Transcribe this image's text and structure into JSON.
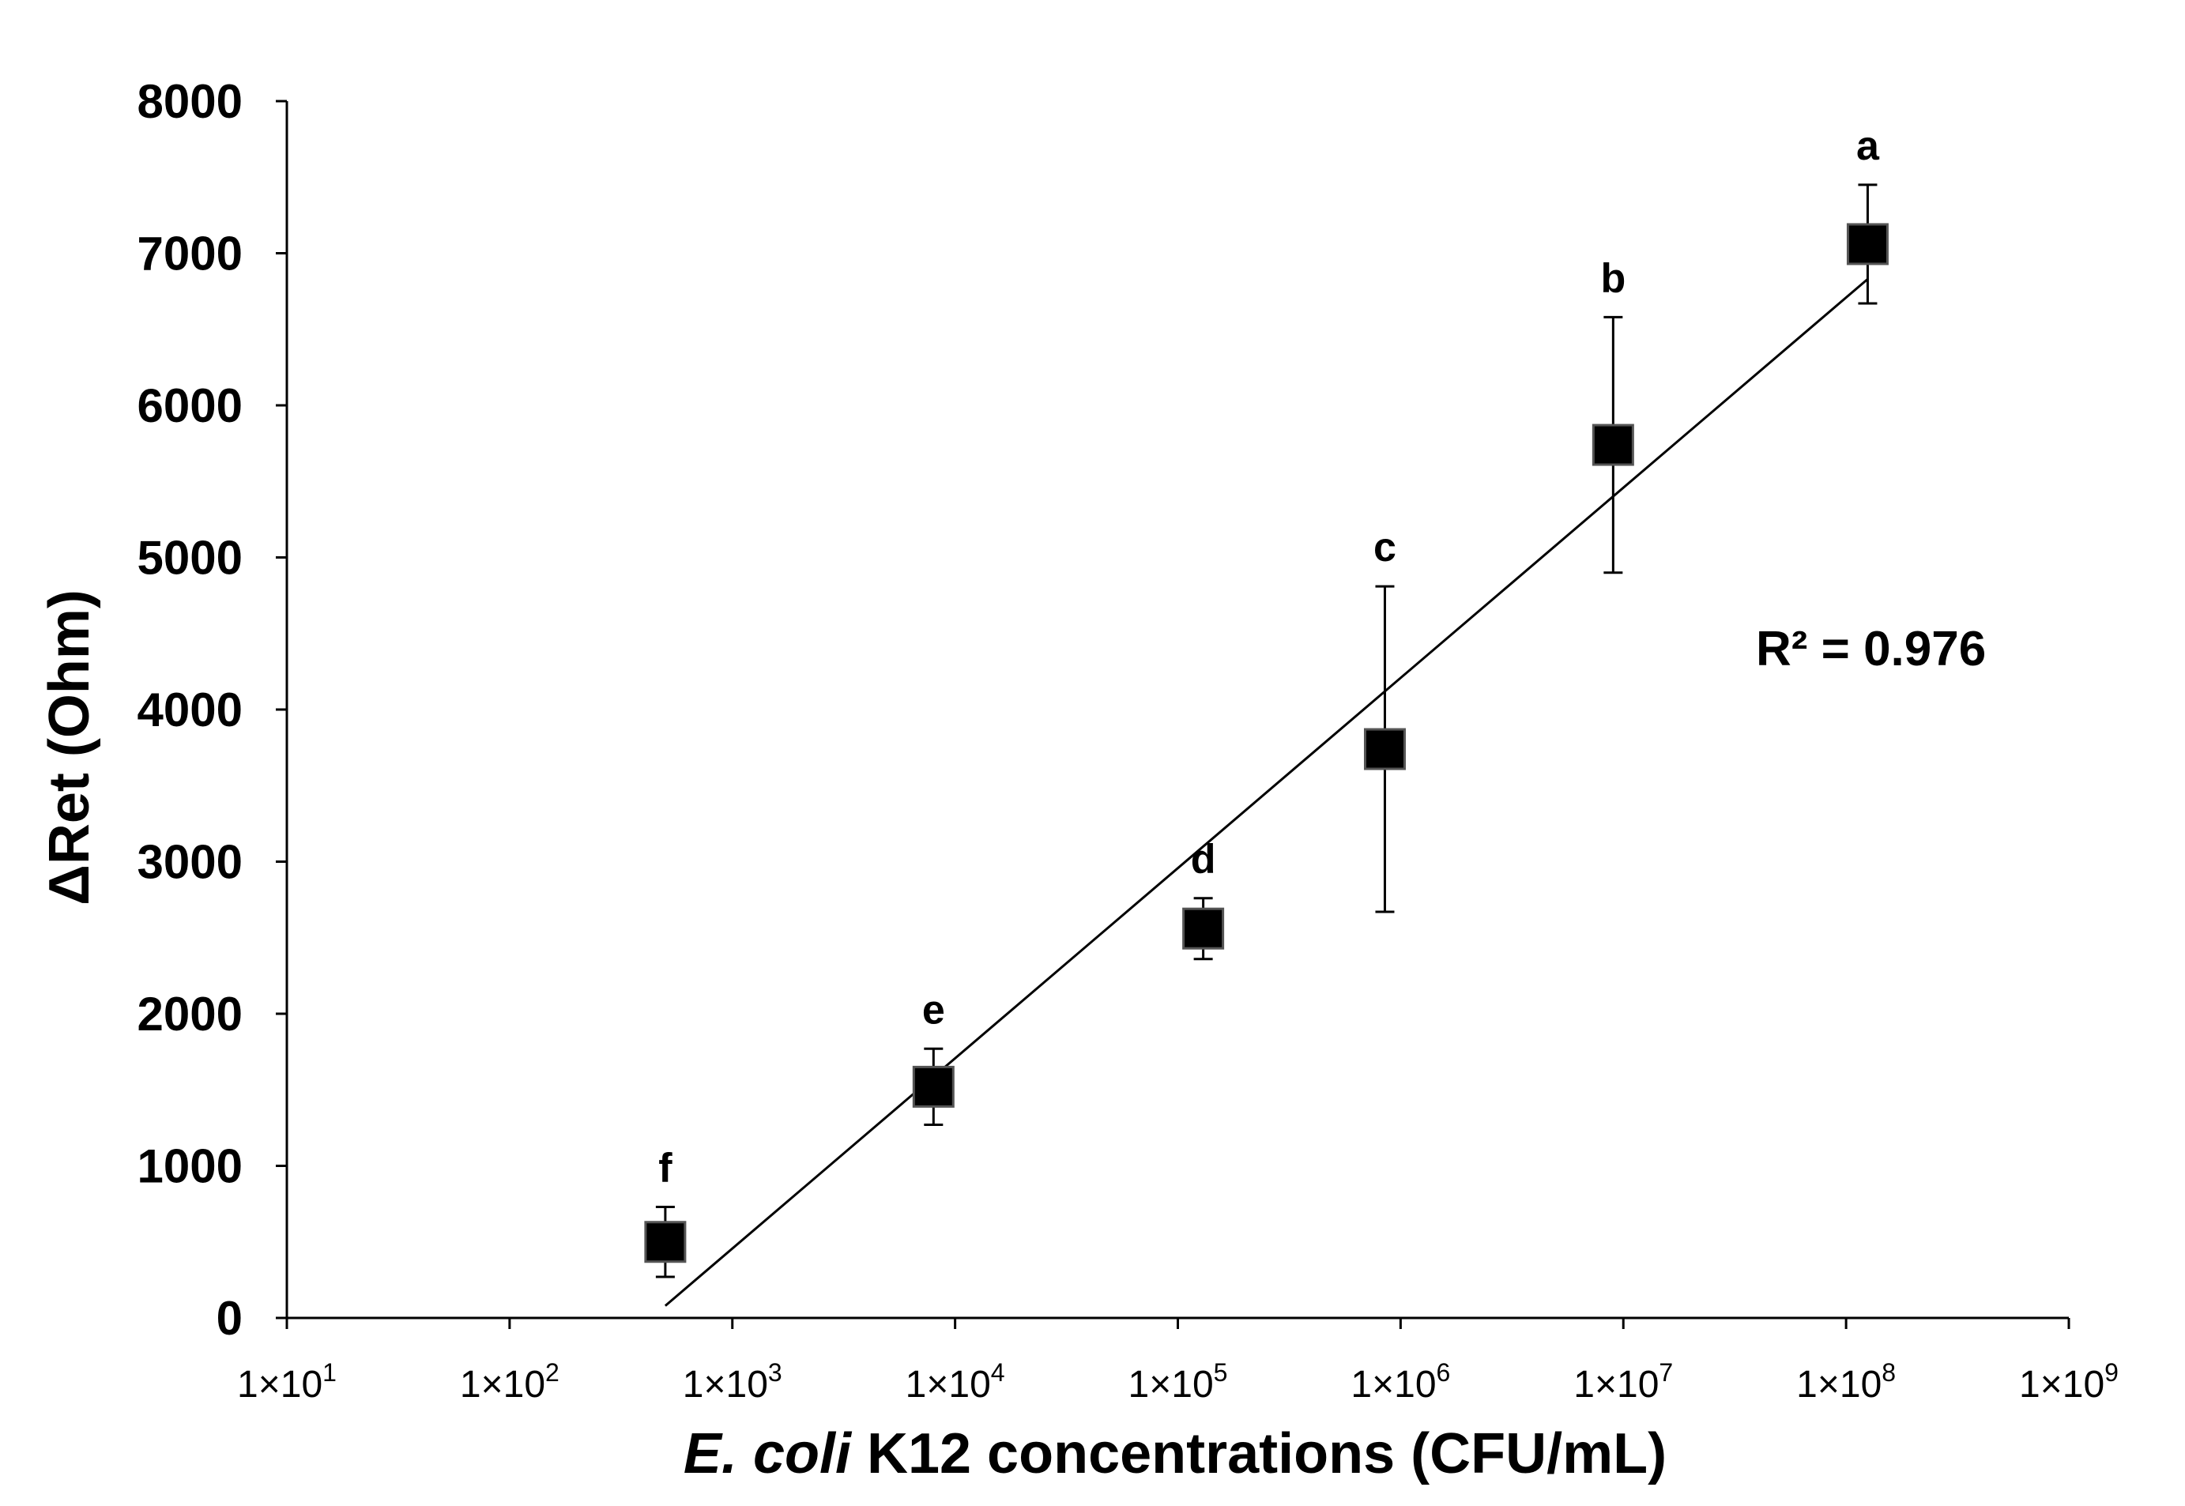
{
  "chart_data": {
    "type": "scatter",
    "title": "",
    "xscale": "log",
    "xlabel_italic": "E. coli",
    "xlabel_rest": " K12 concentrations (CFU/mL)",
    "ylabel": "ΔRet (Ohm)",
    "xlim_exponents": [
      1,
      9
    ],
    "ylim": [
      0,
      8000
    ],
    "y_ticks": [
      0,
      1000,
      2000,
      3000,
      4000,
      5000,
      6000,
      7000,
      8000
    ],
    "x_tick_labels": [
      {
        "base": "1×10",
        "exp": "1"
      },
      {
        "base": "1×10",
        "exp": "2"
      },
      {
        "base": "1×10",
        "exp": "3"
      },
      {
        "base": "1×10",
        "exp": "4"
      },
      {
        "base": "1×10",
        "exp": "5"
      },
      {
        "base": "1×10",
        "exp": "6"
      },
      {
        "base": "1×10",
        "exp": "7"
      },
      {
        "base": "1×10",
        "exp": "8"
      },
      {
        "base": "1×10",
        "exp": "9"
      }
    ],
    "points": [
      {
        "label": "f",
        "x": 500,
        "y": 500,
        "err": 230
      },
      {
        "label": "e",
        "x": 8000,
        "y": 1520,
        "err": 250
      },
      {
        "label": "d",
        "x": 130000,
        "y": 2560,
        "err": 200
      },
      {
        "label": "c",
        "x": 850000,
        "y": 3740,
        "err": 1070
      },
      {
        "label": "b",
        "x": 9000000,
        "y": 5740,
        "err": 840
      },
      {
        "label": "a",
        "x": 125000000,
        "y": 7060,
        "err": 390
      }
    ],
    "trendline": {
      "x_start": 500,
      "x_end": 125000000,
      "y_start": 80,
      "y_end": 6830
    },
    "r_squared_text": "R² = 0.976",
    "colors": {
      "marker": "#000000",
      "line": "#000000",
      "axis": "#000000"
    }
  }
}
